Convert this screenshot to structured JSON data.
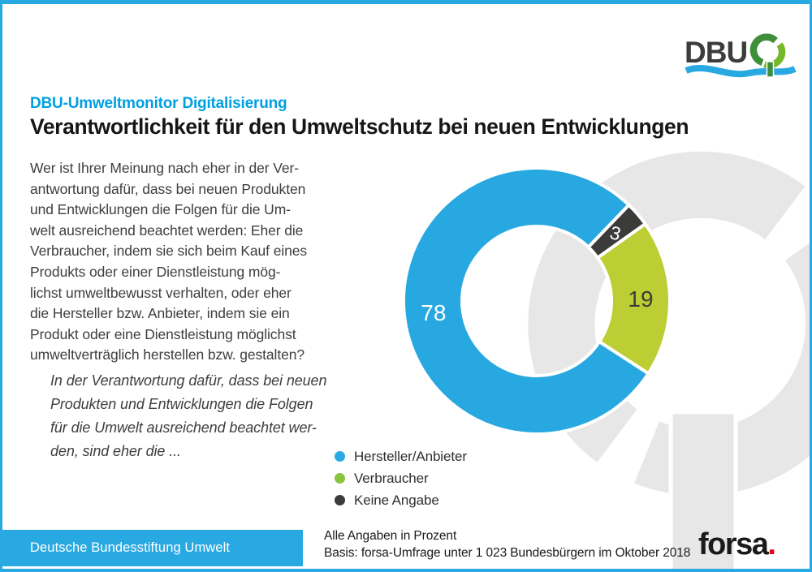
{
  "colors": {
    "brand_blue": "#29A9E1",
    "eyebrow_blue": "#00A0E1",
    "text_dark": "#3E3E3D",
    "forsa_red": "#E30613",
    "watermark_gray": "#E7E7E8"
  },
  "logo": {
    "text": "DBU",
    "text_color": "#3C3C3B",
    "emblem_green_dark": "#3F8E3C",
    "emblem_green_light": "#76B82A",
    "wave_blue": "#29A9E1"
  },
  "header": {
    "eyebrow": "DBU-Umweltmonitor Digitalisierung",
    "title": "Verantwortlichkeit für den Umweltschutz bei neuen Entwicklungen"
  },
  "question": {
    "text": "Wer ist Ihrer Meinung nach eher in der Ver-\nantwortung dafür, dass bei neuen Produkten\nund Entwicklungen die Folgen für die Um-\nwelt ausreichend beachtet werden: Eher die\nVerbraucher, indem sie sich beim Kauf eines\nProdukts oder einer Dienstleistung mög-\nlichst umweltbewusst verhalten, oder eher\ndie Hersteller bzw. Anbieter, indem sie ein\nProdukt oder eine Dienstleistung möglichst\numweltverträglich herstellen bzw. gestalten?"
  },
  "quote": {
    "text": "In der Verantwortung dafür, dass bei neuen\nProdukten und Entwicklungen die Folgen\nfür die Umwelt ausreichend beachtet wer-\nden, sind eher die ..."
  },
  "chart_data": {
    "type": "donut",
    "unit": "percent",
    "title": "Verantwortlichkeit für den Umweltschutz bei neuen Entwicklungen",
    "categories": [
      "Hersteller/Anbieter",
      "Keine Angabe",
      "Verbraucher"
    ],
    "values": [
      78,
      3,
      19
    ],
    "segments": [
      {
        "label": "Hersteller/Anbieter",
        "value": 78,
        "color": "#27A8E1",
        "label_color": "#FFFFFF"
      },
      {
        "label": "Keine Angabe",
        "value": 3,
        "color": "#3B3B3A",
        "label_color": "#FFFFFF"
      },
      {
        "label": "Verbraucher",
        "value": 19,
        "color": "#BCCE33",
        "label_color": "#3B3B3A"
      }
    ],
    "start_angle_deg": 123,
    "clockwise": true,
    "center": [
      661,
      371
    ],
    "outer_radius": 164,
    "inner_radius": 92,
    "label_radius": 128,
    "gap_stroke": "#FFFFFF",
    "legend_position": "bottom-left"
  },
  "legend": {
    "items": [
      {
        "label": "Hersteller/Anbieter",
        "color": "#29ABE2"
      },
      {
        "label": "Verbraucher",
        "color": "#89C540"
      },
      {
        "label": "Keine Angabe",
        "color": "#3B3B3A"
      }
    ]
  },
  "footnote": {
    "line1": "Alle Angaben in Prozent",
    "line2": "Basis: forsa-Umfrage unter 1 023 Bundesbürgern im Oktober 2018"
  },
  "footer": {
    "bar_label": "Deutsche Bundesstiftung Umwelt"
  },
  "forsa": {
    "text": "forsa",
    "dot": "."
  }
}
